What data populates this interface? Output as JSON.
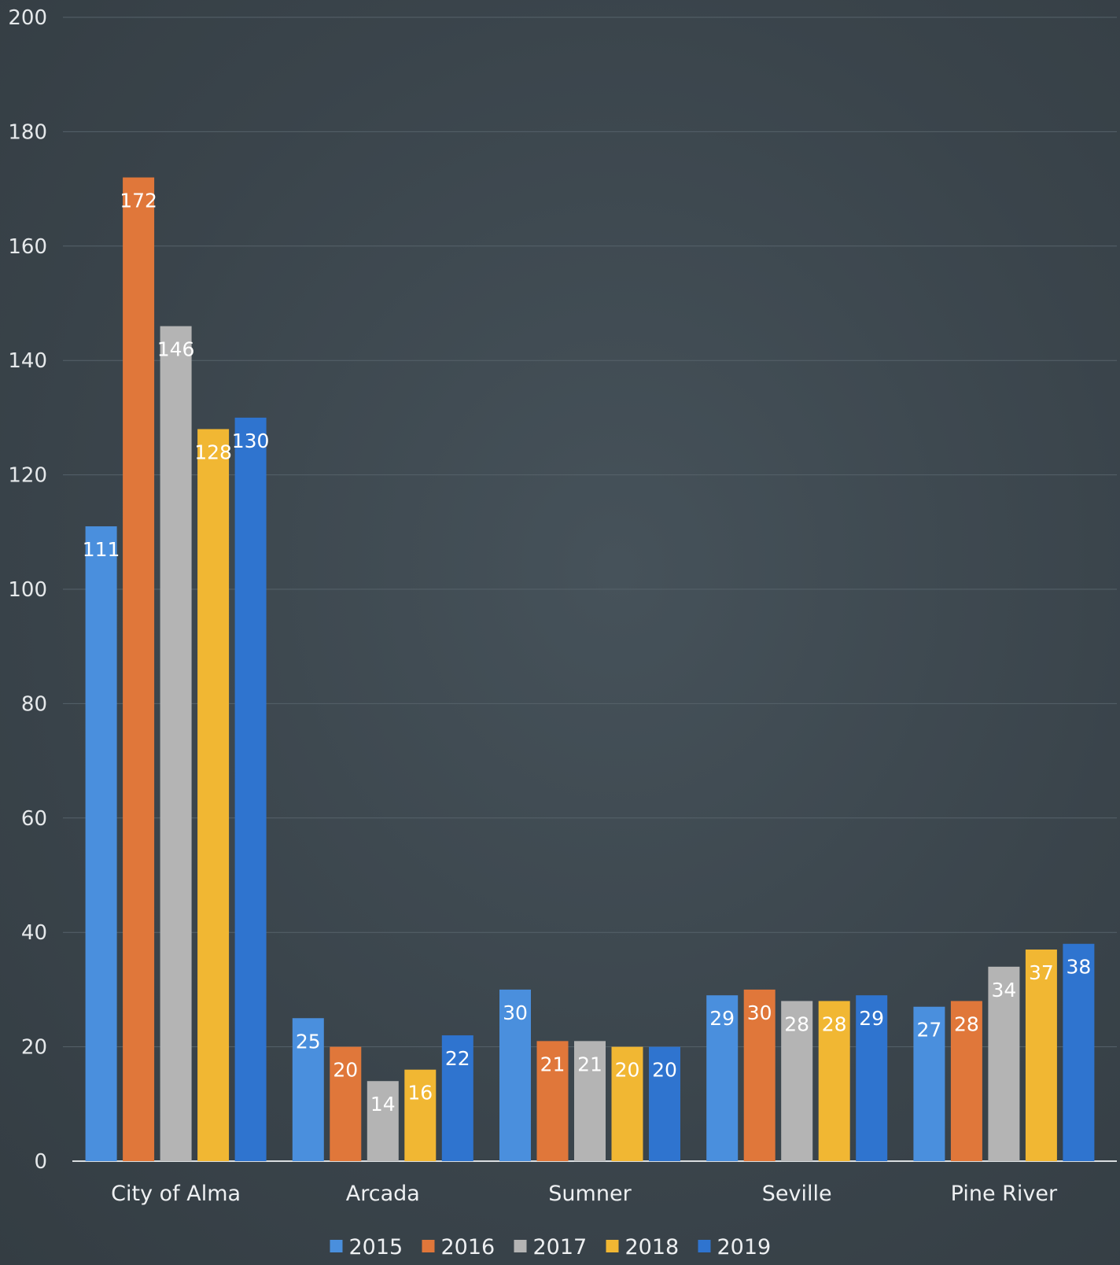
{
  "chart_data": {
    "type": "bar",
    "categories": [
      "City of Alma",
      "Arcada",
      "Sumner",
      "Seville",
      "Pine River"
    ],
    "series": [
      {
        "name": "2015",
        "color": "#4a8fdd",
        "values": [
          111,
          25,
          30,
          29,
          27
        ]
      },
      {
        "name": "2016",
        "color": "#e0773a",
        "values": [
          172,
          20,
          21,
          30,
          28
        ]
      },
      {
        "name": "2017",
        "color": "#b4b4b4",
        "values": [
          146,
          14,
          21,
          28,
          34
        ]
      },
      {
        "name": "2018",
        "color": "#f1b733",
        "values": [
          128,
          16,
          20,
          28,
          37
        ]
      },
      {
        "name": "2019",
        "color": "#2f74cf",
        "values": [
          130,
          22,
          20,
          29,
          38
        ]
      }
    ],
    "ylim": [
      0,
      200
    ],
    "yticks": [
      0,
      20,
      40,
      60,
      80,
      100,
      120,
      140,
      160,
      180,
      200
    ],
    "title": "",
    "xlabel": "",
    "ylabel": "",
    "grid": true,
    "legend_position": "bottom",
    "data_labels": true
  }
}
